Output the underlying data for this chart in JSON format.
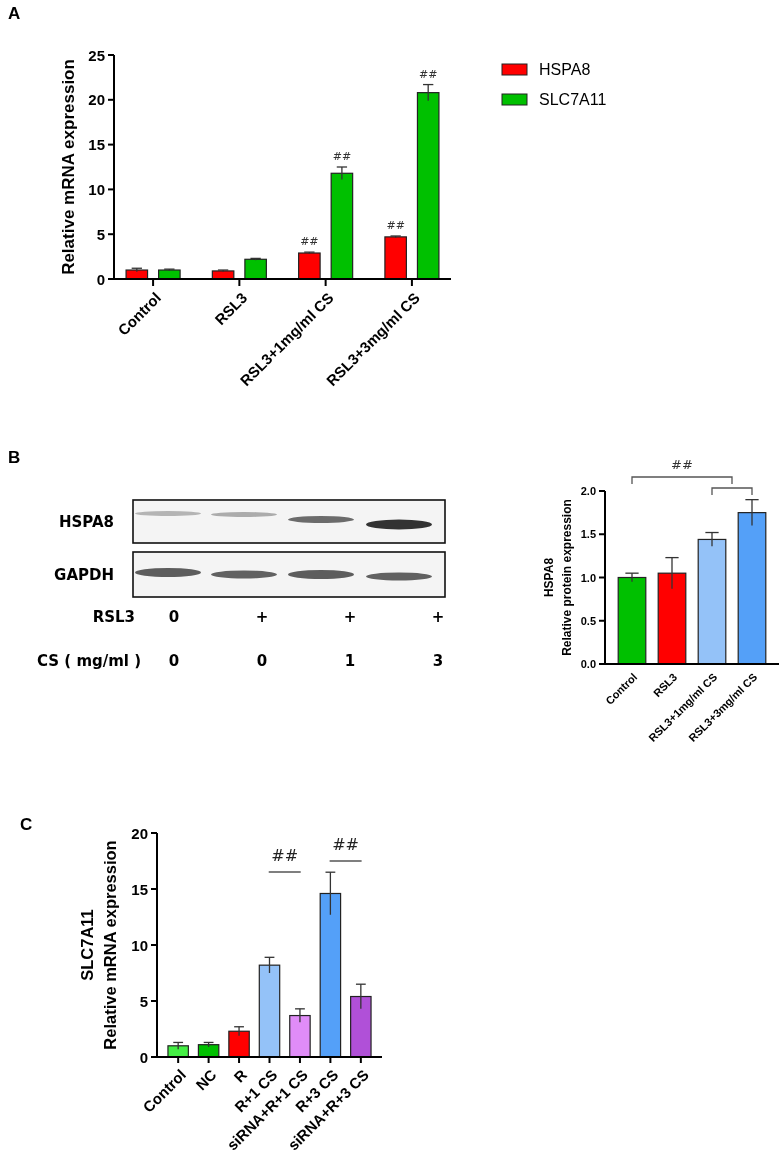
{
  "chart_data": [
    {
      "type": "bar",
      "title": "A",
      "ylabel": "Relative mRNA expression",
      "categories": [
        "Control",
        "RSL3",
        "RSL3+1mg/ml CS",
        "RSL3+3mg/ml CS"
      ],
      "series": [
        {
          "name": "HSPA8",
          "color": "#ff0000",
          "values": [
            1.0,
            0.9,
            2.9,
            4.7
          ],
          "errors": [
            0.2,
            0.1,
            0.1,
            0.1
          ],
          "value_labels": [
            null,
            null,
            "##",
            "##"
          ]
        },
        {
          "name": "SLC7A11",
          "color": "#00c000",
          "values": [
            1.0,
            2.2,
            11.8,
            20.8
          ],
          "errors": [
            0.1,
            0.1,
            0.7,
            0.9
          ],
          "value_labels": [
            null,
            null,
            "##",
            "##"
          ]
        }
      ],
      "ylim": [
        0,
        25
      ],
      "yticks": [
        0,
        5,
        10,
        15,
        20,
        25
      ],
      "legend": "top right"
    },
    {
      "type": "other",
      "title": "B",
      "annotations": [
        "HSPA8",
        "GAPDH",
        "RSL3",
        "0",
        "+",
        "+",
        "+",
        "CS ( mg/ml )",
        "0",
        "0",
        "1",
        "3"
      ]
    },
    {
      "type": "bar",
      "ylabel": "HSPA8\nRelative protein expression",
      "categories": [
        "Control",
        "RSL3",
        "RSL3+1mg/ml CS",
        "RSL3+3mg/ml CS"
      ],
      "values": [
        1.0,
        1.05,
        1.44,
        1.75
      ],
      "colors": [
        "#00c000",
        "#ff0000",
        "#94c2f8",
        "#54a0f8"
      ],
      "errors": [
        0.05,
        0.18,
        0.08,
        0.15
      ],
      "ylim": [
        0,
        2
      ],
      "yticks": [
        {
          "value": 0,
          "label": "0.0"
        },
        {
          "value": 0.5,
          "label": "0.5"
        },
        {
          "value": 1,
          "label": "1.0"
        },
        {
          "value": 1.5,
          "label": "1.5"
        },
        {
          "value": 2,
          "label": "2.0"
        }
      ],
      "annotations": [
        "##"
      ]
    },
    {
      "type": "bar",
      "title": "C",
      "ylabel": "SLC7A11\nRelative mRNA expression",
      "categories": [
        "Control",
        "NC",
        "R",
        "R+1 CS",
        "siRNA+R+1 CS",
        "R+3 CS",
        "siRNA+R+3 CS"
      ],
      "values": [
        1.0,
        1.1,
        2.3,
        8.2,
        3.7,
        14.6,
        5.4
      ],
      "colors": [
        "#44ee44",
        "#00c000",
        "#ff0000",
        "#94c2f8",
        "#e08cf8",
        "#54a0f8",
        "#b050d8"
      ],
      "errors": [
        0.3,
        0.2,
        0.4,
        0.7,
        0.6,
        1.9,
        1.1
      ],
      "ylim": [
        0,
        20
      ],
      "yticks": [
        0,
        5,
        10,
        15,
        20
      ],
      "annotations": [
        "##",
        "##"
      ]
    }
  ]
}
